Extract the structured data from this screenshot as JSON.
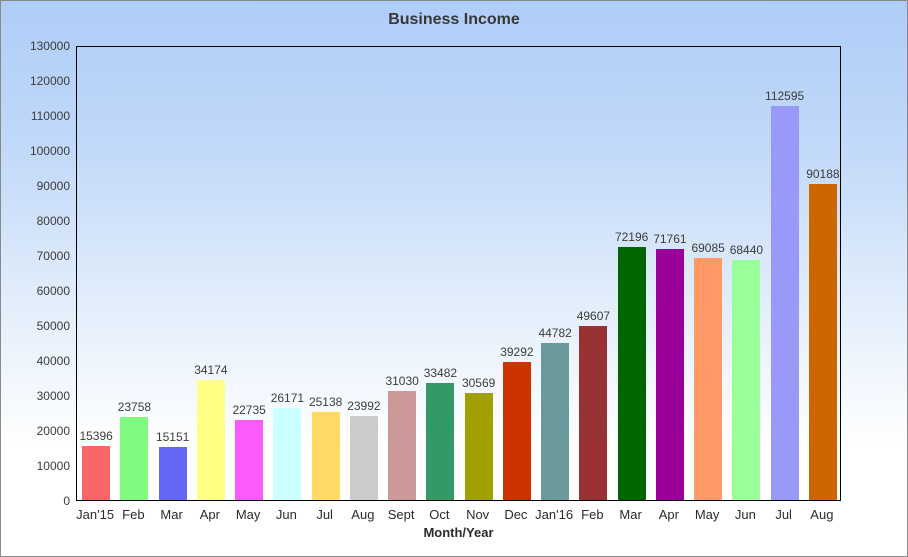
{
  "window": {
    "title": "Business Income"
  },
  "palette": {
    "background_top": "#aecdf8",
    "background_bottom": "#ffffff",
    "outer_border": "#8a8a8a",
    "plot_border": "#000000",
    "text": "#3c3c3c"
  },
  "chart_data": {
    "type": "bar",
    "title": "Business Income",
    "xlabel": "Month/Year",
    "ylabel": "",
    "ylim": [
      0,
      130000
    ],
    "ytick_step": 10000,
    "grid": false,
    "legend": false,
    "categories": [
      "Jan'15",
      "Feb",
      "Mar",
      "Apr",
      "May",
      "Jun",
      "Jul",
      "Aug",
      "Sept",
      "Oct",
      "Nov",
      "Dec",
      "Jan'16",
      "Feb",
      "Mar",
      "Apr",
      "May",
      "Jun",
      "Jul",
      "Aug"
    ],
    "values": [
      15396,
      23758,
      15151,
      34174,
      22735,
      26171,
      25138,
      23992,
      31030,
      33482,
      30569,
      39292,
      44782,
      49607,
      72196,
      71761,
      69085,
      68440,
      112595,
      90188
    ],
    "bar_colors": [
      "#fa6666",
      "#80fb80",
      "#6565f6",
      "#ffff85",
      "#fb5bfb",
      "#ccffff",
      "#ffd966",
      "#cbcbcb",
      "#cc9999",
      "#339966",
      "#a0a000",
      "#cc3300",
      "#6a999c",
      "#993333",
      "#006600",
      "#990099",
      "#ff9966",
      "#99ff99",
      "#9999fa",
      "#cc6600"
    ]
  }
}
